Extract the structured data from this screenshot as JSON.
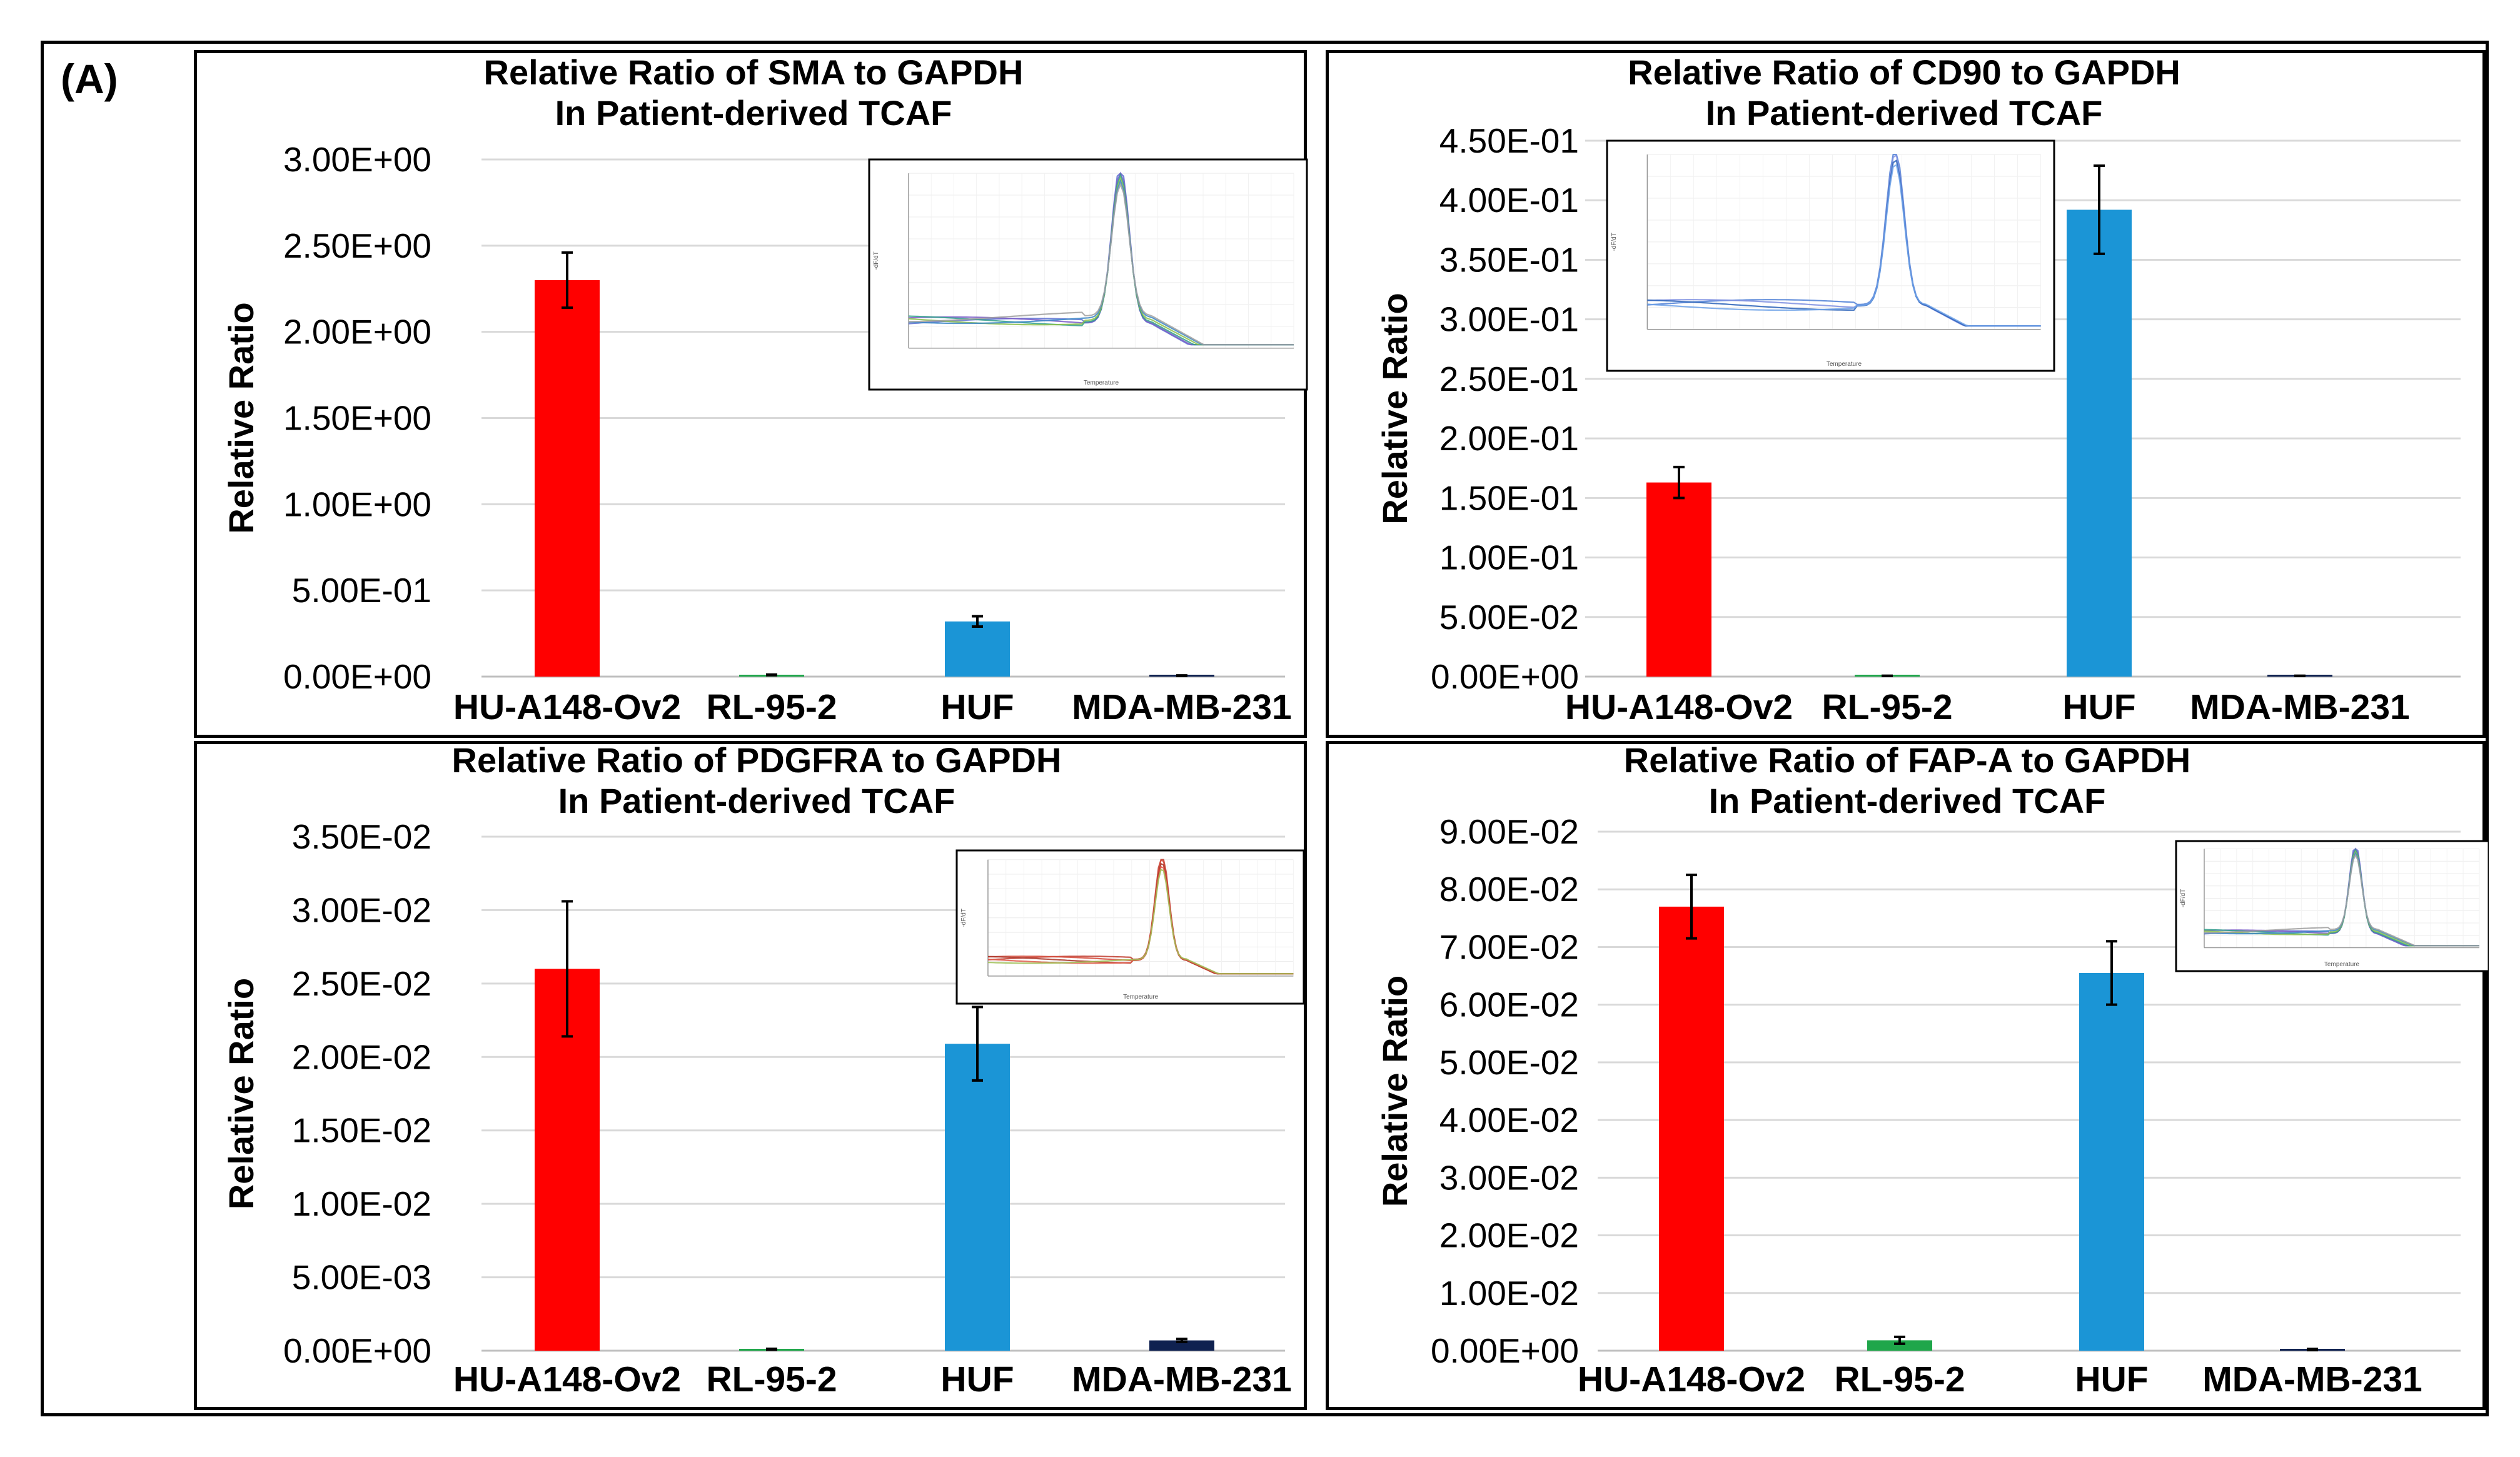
{
  "figure": {
    "panel_label": "(A)"
  },
  "colors": {
    "HU-A148-Ov2": "#ff0000",
    "RL-95-2": "#1fa64a",
    "HUF": "#1b95d6",
    "MDA-MB-231": "#0f2150",
    "grid": "#d9d9d9",
    "error_bar": "#000000"
  },
  "chart_data": [
    {
      "type": "bar",
      "title": [
        "Relative Ratio of SMA to GAPDH",
        "In Patient-derived TCAF"
      ],
      "ylabel": "Relative Ratio",
      "xlabel": "",
      "categories": [
        "HU-A148-Ov2",
        "RL-95-2",
        "HUF",
        "MDA-MB-231"
      ],
      "values": [
        2.3,
        0.01,
        0.32,
        0.005
      ],
      "errors": [
        0.16,
        0.002,
        0.03,
        0.002
      ],
      "ylim": [
        0,
        3.0
      ],
      "yticks": [
        0,
        0.5,
        1.0,
        1.5,
        2.0,
        2.5,
        3.0
      ],
      "ytick_labels": [
        "0.00E+00",
        "5.00E-01",
        "1.00E+00",
        "1.50E+00",
        "2.00E+00",
        "2.50E+00",
        "3.00E+00"
      ],
      "grid": true,
      "inset": {
        "kind": "multi",
        "xlabel": "Temperature",
        "ylabel": "-dF/dT"
      }
    },
    {
      "type": "bar",
      "title": [
        "Relative Ratio of CD90 to GAPDH",
        "In Patient-derived TCAF"
      ],
      "ylabel": "Relative Ratio",
      "xlabel": "",
      "categories": [
        "HU-A148-Ov2",
        "RL-95-2",
        "HUF",
        "MDA-MB-231"
      ],
      "values": [
        0.163,
        0.0005,
        0.392,
        0.0005
      ],
      "errors": [
        0.013,
        0.0002,
        0.037,
        0.0002
      ],
      "ylim": [
        0,
        0.45
      ],
      "yticks": [
        0,
        0.05,
        0.1,
        0.15,
        0.2,
        0.25,
        0.3,
        0.35,
        0.4,
        0.45
      ],
      "ytick_labels": [
        "0.00E+00",
        "5.00E-02",
        "1.00E-01",
        "1.50E-01",
        "2.00E-01",
        "2.50E-01",
        "3.00E-01",
        "3.50E-01",
        "4.00E-01",
        "4.50E-01"
      ],
      "grid": true,
      "inset": {
        "kind": "blue",
        "xlabel": "Temperature",
        "ylabel": "-dF/dT"
      }
    },
    {
      "type": "bar",
      "title": [
        "Relative Ratio of PDGFRA to GAPDH",
        "In Patient-derived TCAF"
      ],
      "ylabel": "Relative Ratio",
      "xlabel": "",
      "categories": [
        "HU-A148-Ov2",
        "RL-95-2",
        "HUF",
        "MDA-MB-231"
      ],
      "values": [
        0.026,
        0.0001,
        0.0209,
        0.0007
      ],
      "errors": [
        0.0046,
        3e-05,
        0.0025,
        0.0001
      ],
      "ylim": [
        0,
        0.035
      ],
      "yticks": [
        0,
        0.005,
        0.01,
        0.015,
        0.02,
        0.025,
        0.03,
        0.035
      ],
      "ytick_labels": [
        "0.00E+00",
        "5.00E-03",
        "1.00E-02",
        "1.50E-02",
        "2.00E-02",
        "2.50E-02",
        "3.00E-02",
        "3.50E-02"
      ],
      "grid": true,
      "inset": {
        "kind": "red",
        "xlabel": "Temperature",
        "ylabel": "-dF/dT"
      }
    },
    {
      "type": "bar",
      "title": [
        "Relative Ratio of FAP-A to GAPDH",
        "In Patient-derived TCAF"
      ],
      "ylabel": "Relative Ratio",
      "xlabel": "",
      "categories": [
        "HU-A148-Ov2",
        "RL-95-2",
        "HUF",
        "MDA-MB-231"
      ],
      "values": [
        0.077,
        0.0018,
        0.0655,
        0.0002
      ],
      "errors": [
        0.0055,
        0.0006,
        0.0055,
        0.0001
      ],
      "ylim": [
        0,
        0.09
      ],
      "yticks": [
        0,
        0.01,
        0.02,
        0.03,
        0.04,
        0.05,
        0.06,
        0.07,
        0.08,
        0.09
      ],
      "ytick_labels": [
        "0.00E+00",
        "1.00E-02",
        "2.00E-02",
        "3.00E-02",
        "4.00E-02",
        "5.00E-02",
        "6.00E-02",
        "7.00E-02",
        "8.00E-02",
        "9.00E-02"
      ],
      "grid": true,
      "inset": {
        "kind": "multi",
        "xlabel": "Temperature",
        "ylabel": "-dF/dT"
      }
    }
  ]
}
